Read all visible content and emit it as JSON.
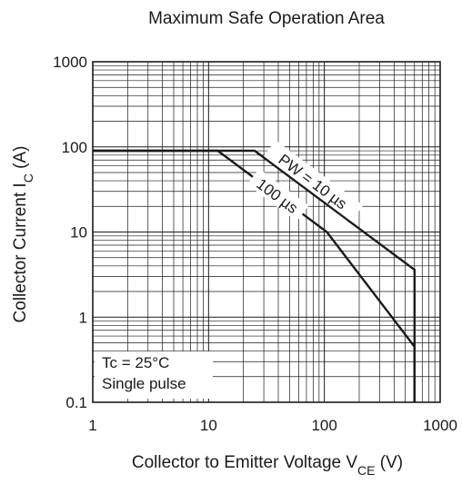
{
  "chart_data": {
    "type": "line",
    "title": "Maximum Safe Operation Area",
    "xlabel": {
      "main": "Collector to Emitter Voltage",
      "symbol": "V",
      "sub": "CE",
      "unit": "(V)"
    },
    "ylabel": {
      "main": "Collector Current",
      "symbol": "I",
      "sub": "C",
      "unit": "(A)"
    },
    "x_scale": "log",
    "y_scale": "log",
    "xlim": [
      1,
      1000
    ],
    "ylim": [
      0.1,
      1000
    ],
    "x_ticks": [
      1,
      10,
      100,
      1000
    ],
    "x_tick_labels": [
      "1",
      "10",
      "100",
      "1000"
    ],
    "y_ticks": [
      0.1,
      1,
      10,
      100,
      1000
    ],
    "y_tick_labels": [
      "0.1",
      "1",
      "10",
      "100",
      "1000"
    ],
    "grid": true,
    "series": [
      {
        "name": "PW = 10 µs",
        "x": [
          1,
          25,
          600,
          600
        ],
        "y": [
          90,
          90,
          3.6,
          0.1
        ]
      },
      {
        "name": "100 µs",
        "x": [
          1,
          12,
          105,
          600,
          600
        ],
        "y": [
          90,
          90,
          10,
          0.45,
          0.1
        ]
      }
    ],
    "annotations": {
      "conditions": [
        "Tc = 25°C",
        "Single pulse"
      ]
    },
    "line_color": "#1a1a1a",
    "grid_color": "#1a1a1a"
  }
}
